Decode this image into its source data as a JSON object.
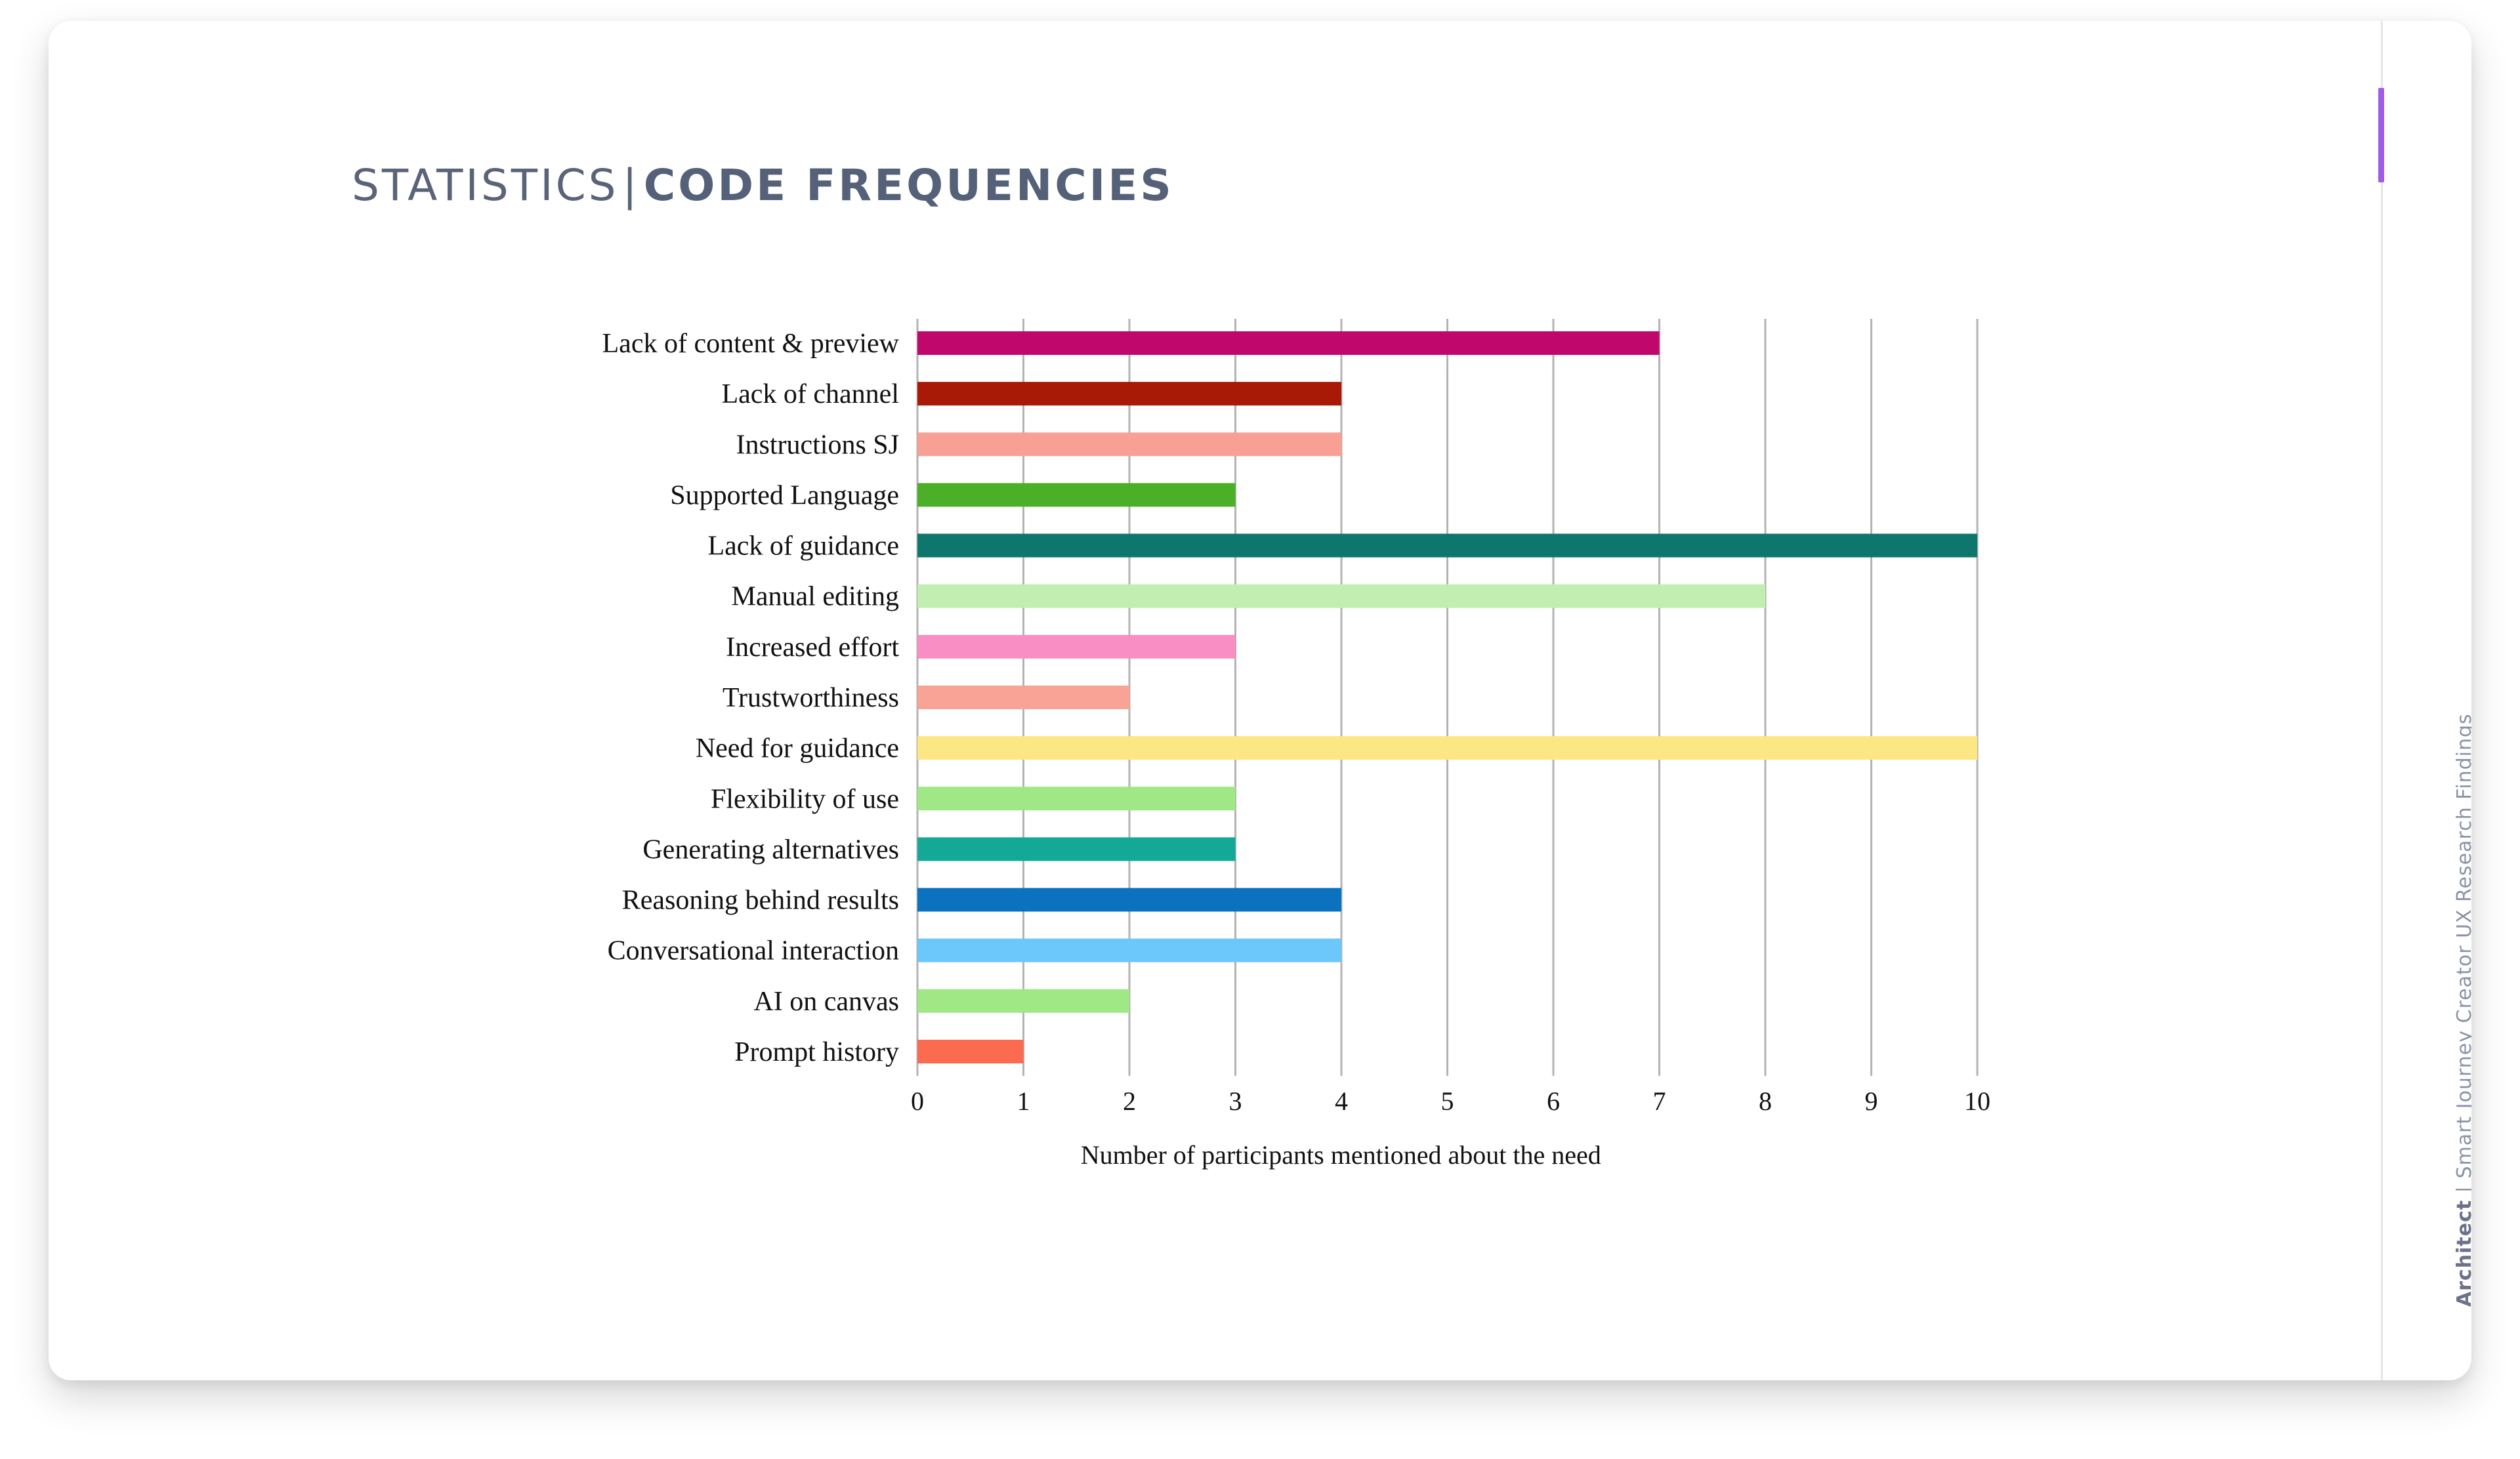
{
  "header": {
    "title_light": "STATISTICS",
    "title_separator": "|",
    "title_bold": "CODE FREQUENCIES"
  },
  "footer": {
    "brand": "Architect",
    "separator": "|",
    "subtitle": "Smart Journey Creator UX Research Findings"
  },
  "colors": {
    "accent": "#a05ce6",
    "title": "#5a6378",
    "gridline": "#b3b3b3"
  },
  "chart_data": {
    "type": "bar",
    "orientation": "horizontal",
    "categories": [
      "Lack of content & preview",
      "Lack of channel",
      "Instructions SJ",
      "Supported Language",
      "Lack of guidance",
      "Manual editing",
      "Increased effort",
      "Trustworthiness",
      "Need for guidance",
      "Flexibility of use",
      "Generating alternatives",
      "Reasoning behind results",
      "Conversational interaction",
      "AI on canvas",
      "Prompt history"
    ],
    "values": [
      7,
      4,
      4,
      3,
      10,
      8,
      3,
      2,
      10,
      3,
      3,
      4,
      4,
      2,
      1
    ],
    "colors": [
      "#c0086c",
      "#a81a06",
      "#f9a094",
      "#4caf28",
      "#0e766c",
      "#c1efb1",
      "#f98ec4",
      "#f9a396",
      "#fde784",
      "#a0e885",
      "#13a996",
      "#0a72be",
      "#6cc7fb",
      "#a0e885",
      "#fb6b4f"
    ],
    "xlabel": "Number of participants mentioned about the need",
    "ylabel": "",
    "xlim": [
      0,
      10
    ],
    "xticks": [
      "0",
      "1",
      "2",
      "3",
      "4",
      "5",
      "6",
      "7",
      "8",
      "9",
      "10"
    ],
    "grid": "vertical"
  }
}
